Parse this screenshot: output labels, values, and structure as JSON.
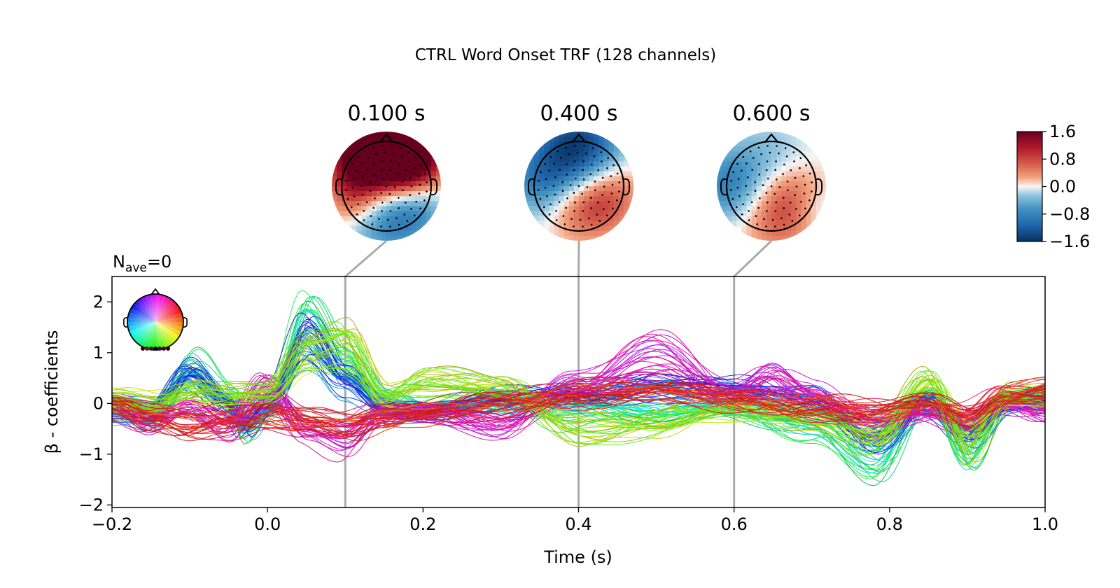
{
  "chart_data": [
    {
      "type": "line",
      "title": "CTRL Word Onset TRF (128 channels)",
      "subtitle_prefix": "N",
      "subtitle_sub": "ave",
      "subtitle_suffix": "=0",
      "xlabel": "Time (s)",
      "ylabel": "β - coefficients",
      "xlim": [
        -0.2,
        1.0
      ],
      "ylim": [
        -2.05,
        2.5
      ],
      "xticks": [
        -0.2,
        0.0,
        0.2,
        0.4,
        0.6,
        0.8,
        1.0
      ],
      "xtick_labels": [
        "−0.2",
        "0.0",
        "0.2",
        "0.4",
        "0.6",
        "0.8",
        "1.0"
      ],
      "yticks": [
        -2,
        -1,
        0,
        1,
        2
      ],
      "ytick_labels": [
        "−2",
        "−1",
        "0",
        "1",
        "2"
      ],
      "grid": false,
      "legend": "sensor-position color wheel, top-left",
      "n_channels": 128,
      "highlight_times": [
        0.1,
        0.4,
        0.6
      ],
      "series_groups": [
        {
          "name": "frontal-green",
          "color_hue_range": [
            120,
            190
          ],
          "points": [
            [
              -0.2,
              -0.2
            ],
            [
              -0.15,
              -0.3
            ],
            [
              -0.1,
              0.8
            ],
            [
              -0.05,
              0.1
            ],
            [
              -0.03,
              -0.6
            ],
            [
              0.0,
              -0.1
            ],
            [
              0.05,
              1.9
            ],
            [
              0.1,
              0.9
            ],
            [
              0.15,
              0.1
            ],
            [
              0.2,
              -0.1
            ],
            [
              0.3,
              0.0
            ],
            [
              0.4,
              -0.1
            ],
            [
              0.5,
              -0.2
            ],
            [
              0.6,
              -0.1
            ],
            [
              0.7,
              -0.5
            ],
            [
              0.78,
              -1.3
            ],
            [
              0.85,
              0.2
            ],
            [
              0.9,
              -1.1
            ],
            [
              0.95,
              0.1
            ],
            [
              1.0,
              0.1
            ]
          ]
        },
        {
          "name": "central-blue",
          "color_hue_range": [
            195,
            250
          ],
          "points": [
            [
              -0.2,
              -0.1
            ],
            [
              -0.15,
              -0.2
            ],
            [
              -0.1,
              0.7
            ],
            [
              -0.05,
              0.0
            ],
            [
              -0.03,
              -0.5
            ],
            [
              0.0,
              0.0
            ],
            [
              0.05,
              1.5
            ],
            [
              0.1,
              0.5
            ],
            [
              0.15,
              -0.1
            ],
            [
              0.2,
              -0.2
            ],
            [
              0.3,
              0.1
            ],
            [
              0.4,
              0.2
            ],
            [
              0.5,
              0.4
            ],
            [
              0.6,
              0.3
            ],
            [
              0.7,
              0.1
            ],
            [
              0.78,
              -0.8
            ],
            [
              0.85,
              0.0
            ],
            [
              0.9,
              -0.7
            ],
            [
              0.95,
              0.0
            ],
            [
              1.0,
              0.1
            ]
          ]
        },
        {
          "name": "posterior-magenta",
          "color_hue_range": [
            280,
            330
          ],
          "points": [
            [
              -0.2,
              -0.1
            ],
            [
              -0.15,
              -0.4
            ],
            [
              -0.1,
              -0.1
            ],
            [
              -0.05,
              -0.5
            ],
            [
              0.0,
              0.4
            ],
            [
              0.05,
              -0.6
            ],
            [
              0.1,
              -0.8
            ],
            [
              0.15,
              -0.2
            ],
            [
              0.2,
              -0.2
            ],
            [
              0.3,
              -0.5
            ],
            [
              0.4,
              0.4
            ],
            [
              0.5,
              1.1
            ],
            [
              0.6,
              0.2
            ],
            [
              0.65,
              0.6
            ],
            [
              0.7,
              0.2
            ],
            [
              0.78,
              -0.4
            ],
            [
              0.85,
              -0.2
            ],
            [
              0.9,
              -0.4
            ],
            [
              0.95,
              0.0
            ],
            [
              1.0,
              -0.2
            ]
          ]
        },
        {
          "name": "temporal-yellow",
          "color_hue_range": [
            50,
            110
          ],
          "points": [
            [
              -0.2,
              0.1
            ],
            [
              -0.15,
              0.0
            ],
            [
              -0.1,
              0.3
            ],
            [
              -0.05,
              0.2
            ],
            [
              0.0,
              0.3
            ],
            [
              0.05,
              1.2
            ],
            [
              0.1,
              1.4
            ],
            [
              0.15,
              0.2
            ],
            [
              0.2,
              0.5
            ],
            [
              0.3,
              0.4
            ],
            [
              0.4,
              -0.6
            ],
            [
              0.5,
              -0.4
            ],
            [
              0.6,
              -0.1
            ],
            [
              0.7,
              -0.3
            ],
            [
              0.78,
              -0.7
            ],
            [
              0.85,
              0.5
            ],
            [
              0.9,
              -0.9
            ],
            [
              0.95,
              0.2
            ],
            [
              1.0,
              0.2
            ]
          ]
        },
        {
          "name": "occipital-red",
          "color_hue_range": [
            340,
            20
          ],
          "points": [
            [
              -0.2,
              0.0
            ],
            [
              -0.15,
              -0.3
            ],
            [
              -0.1,
              -0.5
            ],
            [
              -0.05,
              -0.4
            ],
            [
              0.0,
              -0.3
            ],
            [
              0.05,
              -0.4
            ],
            [
              0.1,
              -0.5
            ],
            [
              0.15,
              -0.3
            ],
            [
              0.2,
              -0.2
            ],
            [
              0.3,
              0.0
            ],
            [
              0.4,
              0.2
            ],
            [
              0.5,
              0.3
            ],
            [
              0.6,
              0.1
            ],
            [
              0.7,
              -0.1
            ],
            [
              0.78,
              -0.2
            ],
            [
              0.85,
              0.0
            ],
            [
              0.9,
              -0.3
            ],
            [
              0.95,
              0.2
            ],
            [
              1.0,
              0.3
            ]
          ]
        }
      ]
    },
    {
      "type": "heatmap",
      "name": "topomaps",
      "maps": [
        {
          "label": "0.100 s",
          "time": 0.1,
          "pattern": "frontal positive (up to 1.6), posterior negative (-0.8)"
        },
        {
          "label": "0.400 s",
          "time": 0.4,
          "pattern": "frontal negative (-1.2), right posterior positive (0.8)"
        },
        {
          "label": "0.600 s",
          "time": 0.6,
          "pattern": "left temporal negative (-0.8), posterior positive (0.8)"
        }
      ],
      "colormap": "RdBu_r",
      "colorbar_ticks": [
        1.6,
        0.8,
        0.0,
        -0.8,
        -1.6
      ],
      "colorbar_labels": [
        "1.6",
        "0.8",
        "0.0",
        "−0.8",
        "−1.6"
      ],
      "colors": {
        "max": "#67001f",
        "high": "#d6604d",
        "zero": "#f7f7f7",
        "low": "#4393c3",
        "min": "#053061"
      }
    }
  ]
}
